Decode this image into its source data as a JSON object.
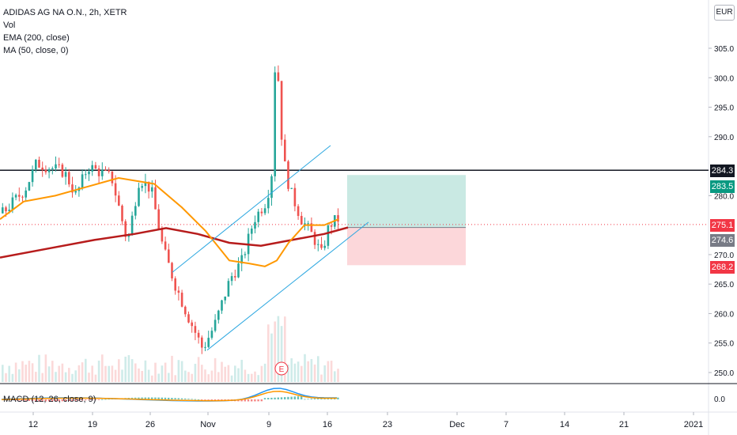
{
  "legend": {
    "symbol": "ADIDAS AG NA O.N., 2h, XETR",
    "vol": "Vol",
    "ema": "EMA (200, close)",
    "ma": "MA (50, close, 0)",
    "macd": "MACD (12, 26, close, 9)"
  },
  "currency": "EUR",
  "chart_data": {
    "type": "candlestick",
    "price_axis_ticks": [
      "305.0",
      "300.0",
      "295.0",
      "290.0",
      "280.0",
      "270.0",
      "265.0",
      "260.0",
      "255.0",
      "250.0"
    ],
    "macd_axis_ticks": [
      "0.0"
    ],
    "time_axis_ticks": [
      "12",
      "19",
      "26",
      "Nov",
      "9",
      "16",
      "23",
      "Dec",
      "7",
      "14",
      "21",
      "2021"
    ],
    "price_range": [
      247,
      308
    ],
    "horizontal_line": 284.3,
    "price_labels": [
      {
        "value": "284.3",
        "color": "#131722"
      },
      {
        "value": "283.5",
        "color": "#089981"
      },
      {
        "value": "275.1",
        "color": "#f23645"
      },
      {
        "value": "274.6",
        "color": "#787b86"
      },
      {
        "value": "268.2",
        "color": "#f23645"
      }
    ],
    "position": {
      "entry": 274.6,
      "target": 283.5,
      "stop": 268.2
    },
    "annotation": "E",
    "series_colors": {
      "ema": "#b71c1c",
      "ma": "#ff9800",
      "macd": "#2196f3",
      "signal": "#ff9800",
      "channel": "#2ca7e0"
    }
  }
}
